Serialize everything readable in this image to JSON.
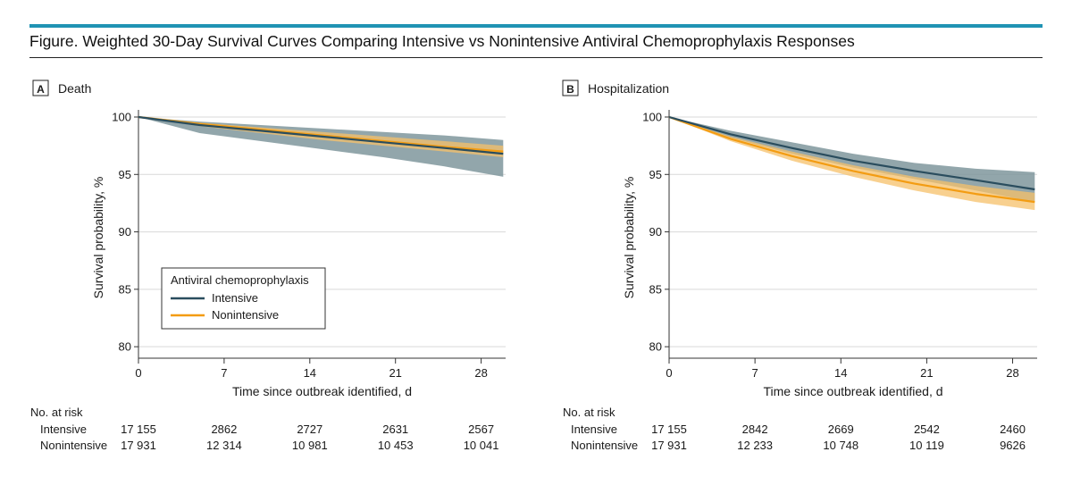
{
  "figure_title": "Figure. Weighted 30-Day Survival Curves Comparing Intensive vs Nonintensive Antiviral Chemoprophylaxis Responses",
  "colors": {
    "accent_bar": "#1f93b4",
    "intensive": "#2a4d5e",
    "intensive_ci": "#7f969c",
    "nonintensive": "#f39c12",
    "nonintensive_ci": "#f5c06a",
    "grid": "#d9d9d9"
  },
  "legend": {
    "title": "Antiviral chemoprophylaxis",
    "items": [
      "Intensive",
      "Nonintensive"
    ]
  },
  "risk_label": "No. at risk",
  "chart_data": [
    {
      "type": "line",
      "panel_letter": "A",
      "title": "Death",
      "xlabel": "Time since outbreak identified, d",
      "ylabel": "Survival probability, %",
      "xlim": [
        0,
        30
      ],
      "ylim": [
        79,
        100
      ],
      "xticks": [
        0,
        7,
        14,
        21,
        28
      ],
      "yticks": [
        80,
        85,
        90,
        95,
        100
      ],
      "grid": true,
      "legend_position": "bottom-left",
      "x": [
        0,
        5,
        10,
        15,
        20,
        25,
        29.8
      ],
      "series": [
        {
          "name": "Intensive",
          "values": [
            100,
            99.3,
            98.8,
            98.3,
            97.8,
            97.3,
            96.8
          ],
          "ci_lower": [
            100,
            98.6,
            97.9,
            97.2,
            96.5,
            95.7,
            94.8
          ],
          "ci_upper": [
            100,
            99.6,
            99.3,
            99.0,
            98.7,
            98.4,
            98.0
          ]
        },
        {
          "name": "Nonintensive",
          "values": [
            100,
            99.4,
            98.9,
            98.4,
            97.9,
            97.4,
            97.0
          ],
          "ci_lower": [
            100,
            99.2,
            98.6,
            98.0,
            97.5,
            97.0,
            96.5
          ],
          "ci_upper": [
            100,
            99.5,
            99.1,
            98.7,
            98.3,
            97.9,
            97.5
          ]
        }
      ],
      "risk_table": {
        "Intensive": [
          "17 155",
          "2862",
          "2727",
          "2631",
          "2567"
        ],
        "Nonintensive": [
          "17 931",
          "12 314",
          "10 981",
          "10 453",
          "10 041"
        ]
      }
    },
    {
      "type": "line",
      "panel_letter": "B",
      "title": "Hospitalization",
      "xlabel": "Time since outbreak identified, d",
      "ylabel": "Survival probability, %",
      "xlim": [
        0,
        30
      ],
      "ylim": [
        79,
        100
      ],
      "xticks": [
        0,
        7,
        14,
        21,
        28
      ],
      "yticks": [
        80,
        85,
        90,
        95,
        100
      ],
      "grid": true,
      "x": [
        0,
        5,
        10,
        15,
        20,
        25,
        29.8
      ],
      "series": [
        {
          "name": "Intensive",
          "values": [
            100,
            98.5,
            97.3,
            96.2,
            95.3,
            94.5,
            93.7
          ],
          "ci_lower": [
            100,
            98.2,
            96.8,
            95.6,
            94.6,
            93.6,
            92.6
          ],
          "ci_upper": [
            100,
            98.8,
            97.8,
            96.8,
            96.0,
            95.5,
            95.2
          ]
        },
        {
          "name": "Nonintensive",
          "values": [
            100,
            98.1,
            96.6,
            95.3,
            94.2,
            93.3,
            92.6
          ],
          "ci_lower": [
            100,
            97.9,
            96.2,
            94.8,
            93.6,
            92.6,
            91.9
          ],
          "ci_upper": [
            100,
            98.3,
            97.0,
            95.8,
            94.8,
            94.0,
            93.4
          ]
        }
      ],
      "risk_table": {
        "Intensive": [
          "17 155",
          "2842",
          "2669",
          "2542",
          "2460"
        ],
        "Nonintensive": [
          "17 931",
          "12 233",
          "10 748",
          "10 119",
          "9626"
        ]
      }
    }
  ]
}
